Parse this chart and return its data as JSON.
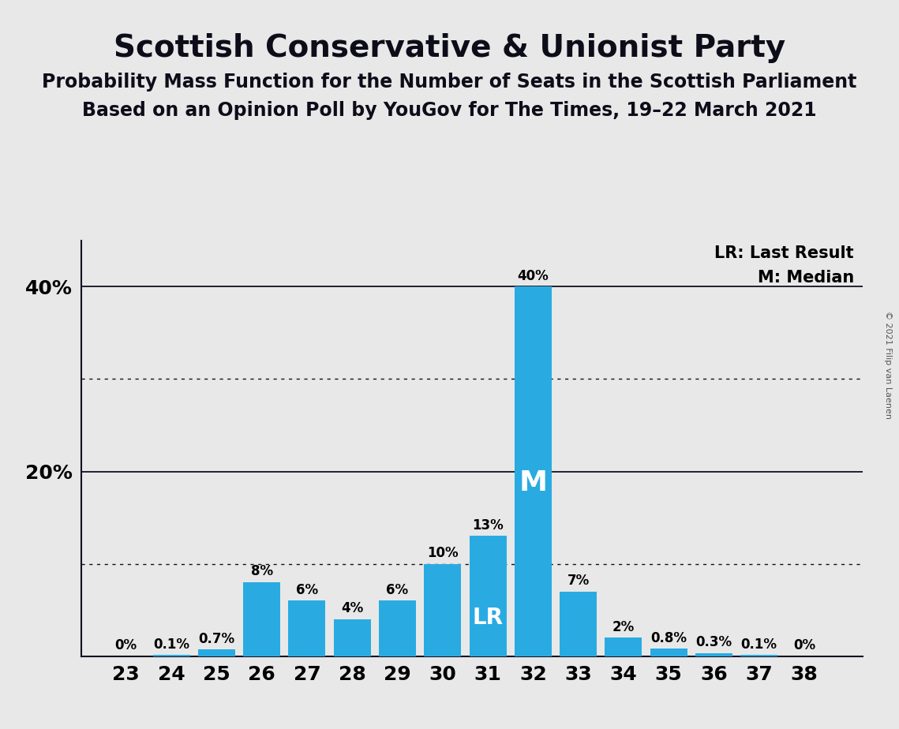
{
  "title": "Scottish Conservative & Unionist Party",
  "subtitle1": "Probability Mass Function for the Number of Seats in the Scottish Parliament",
  "subtitle2": "Based on an Opinion Poll by YouGov for The Times, 19–22 March 2021",
  "copyright": "© 2021 Filip van Laenen",
  "seats": [
    23,
    24,
    25,
    26,
    27,
    28,
    29,
    30,
    31,
    32,
    33,
    34,
    35,
    36,
    37,
    38
  ],
  "probabilities": [
    0.0,
    0.1,
    0.7,
    8.0,
    6.0,
    4.0,
    6.0,
    10.0,
    13.0,
    40.0,
    7.0,
    2.0,
    0.8,
    0.3,
    0.1,
    0.0
  ],
  "labels": [
    "0%",
    "0.1%",
    "0.7%",
    "8%",
    "6%",
    "4%",
    "6%",
    "10%",
    "13%",
    "40%",
    "7%",
    "2%",
    "0.8%",
    "0.3%",
    "0.1%",
    "0%"
  ],
  "bar_color": "#29ABE2",
  "last_result_seat": 31,
  "median_seat": 32,
  "background_color": "#E8E8E8",
  "yticks_labeled": [
    20,
    40
  ],
  "ytick_labels": [
    "20%",
    "40%"
  ],
  "dotted_lines": [
    10,
    30
  ],
  "solid_lines": [
    20,
    40
  ],
  "ylim": [
    0,
    45
  ],
  "legend_lr": "LR: Last Result",
  "legend_m": "M: Median",
  "title_fontsize": 28,
  "subtitle_fontsize": 17,
  "tick_fontsize": 18,
  "label_fontsize": 12
}
